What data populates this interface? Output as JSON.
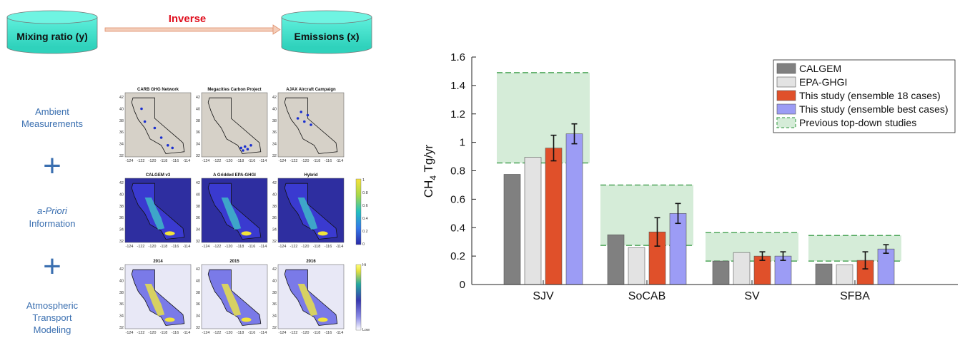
{
  "diagram": {
    "left_box": "Mixing ratio (y)",
    "right_box": "Emissions (x)",
    "arrow_label": "Inverse",
    "rows": [
      {
        "label_lines": [
          "Ambient",
          "Measurements"
        ],
        "italic": [
          false,
          false
        ]
      },
      {
        "label_lines": [
          "a-Priori",
          "Information"
        ],
        "italic": [
          true,
          false
        ]
      },
      {
        "label_lines": [
          "Atmospheric",
          "Transport",
          "Modeling"
        ],
        "italic": [
          false,
          false,
          false
        ]
      }
    ],
    "plus_symbol": "+",
    "map_titles": [
      [
        "CARB GHG Network",
        "Megacities Carbon Project",
        "AJAX Aircraft Campaign"
      ],
      [
        "CALGEM v3",
        "A Gridded EPA-GHGI",
        "Hybrid"
      ],
      [
        "2014",
        "2015",
        "2016"
      ]
    ],
    "map_y_ticks": [
      "42",
      "40",
      "38",
      "36",
      "34",
      "32"
    ],
    "map_x_ticks": [
      "-124",
      "-122",
      "-120",
      "-118",
      "-116",
      "-114"
    ],
    "colorbar_priori_ticks": [
      "1",
      "0.8",
      "0.6",
      "0.4",
      "0.2",
      "0"
    ],
    "colorbar_transport_ticks": [
      "Hi",
      "Low"
    ],
    "colors": {
      "cylinder": "#40e6cf",
      "arrow": "#e8a58a",
      "arrow_label": "#e0101f",
      "label": "#3a6fb0"
    }
  },
  "chart_data": {
    "type": "bar",
    "ylabel_main": "CH",
    "ylabel_sub": "4",
    "ylabel_rest": " Tg/yr",
    "ylim": [
      0,
      1.6
    ],
    "yticks": [
      0,
      0.2,
      0.4,
      0.6,
      0.8,
      1,
      1.2,
      1.4,
      1.6
    ],
    "ytick_labels": [
      "0",
      "0.2",
      "0.4",
      "0.6",
      "0.8",
      "1",
      "1.2",
      "1.4",
      "1.6"
    ],
    "categories": [
      "SJV",
      "SoCAB",
      "SV",
      "SFBA"
    ],
    "series": [
      {
        "name": "CALGEM",
        "color": "#808080",
        "values": [
          0.775,
          0.35,
          0.165,
          0.145
        ]
      },
      {
        "name": "EPA-GHGI",
        "color": "#e3e3e3",
        "values": [
          0.895,
          0.26,
          0.225,
          0.14
        ]
      },
      {
        "name": "This study (ensemble 18 cases)",
        "color": "#e0502a",
        "values": [
          0.96,
          0.37,
          0.2,
          0.17
        ],
        "err": [
          0.09,
          0.1,
          0.03,
          0.06
        ]
      },
      {
        "name": "This study (ensemble best cases)",
        "color": "#9c9cf5",
        "values": [
          1.06,
          0.5,
          0.2,
          0.25
        ],
        "err": [
          0.07,
          0.07,
          0.03,
          0.03
        ]
      }
    ],
    "ranges": {
      "name": "Previous top-down studies",
      "color": "#d5ecd8",
      "line": "#4ea65a",
      "low": [
        0.855,
        0.275,
        0.165,
        0.165
      ],
      "high": [
        1.49,
        0.7,
        0.365,
        0.345
      ]
    },
    "legend_position": "top-right",
    "grid": false
  }
}
